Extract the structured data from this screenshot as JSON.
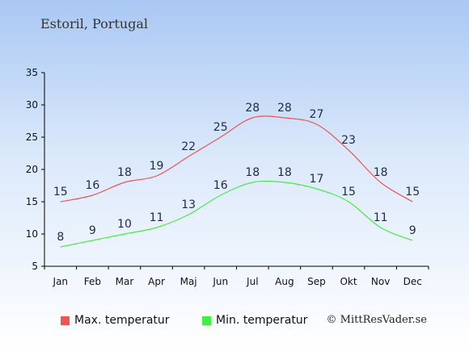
{
  "page": {
    "location": "Estoril, Portugal",
    "credit": "© MittResVader.se"
  },
  "chart_data": {
    "type": "line",
    "categories": [
      "Jan",
      "Feb",
      "Mar",
      "Apr",
      "Maj",
      "Jun",
      "Jul",
      "Aug",
      "Sep",
      "Okt",
      "Nov",
      "Dec"
    ],
    "series": [
      {
        "name": "Max. temperatur",
        "color": "#ee5555",
        "values": [
          15,
          16,
          18,
          19,
          22,
          25,
          28,
          28,
          27,
          23,
          18,
          15
        ]
      },
      {
        "name": "Min. temperatur",
        "color": "#44ee44",
        "values": [
          8,
          9,
          10,
          11,
          13,
          16,
          18,
          18,
          17,
          15,
          11,
          9
        ]
      }
    ],
    "yticks": [
      5,
      10,
      15,
      20,
      25,
      30,
      35
    ],
    "ylim": [
      5,
      35
    ],
    "grid": false,
    "legend": "bottom-left"
  }
}
